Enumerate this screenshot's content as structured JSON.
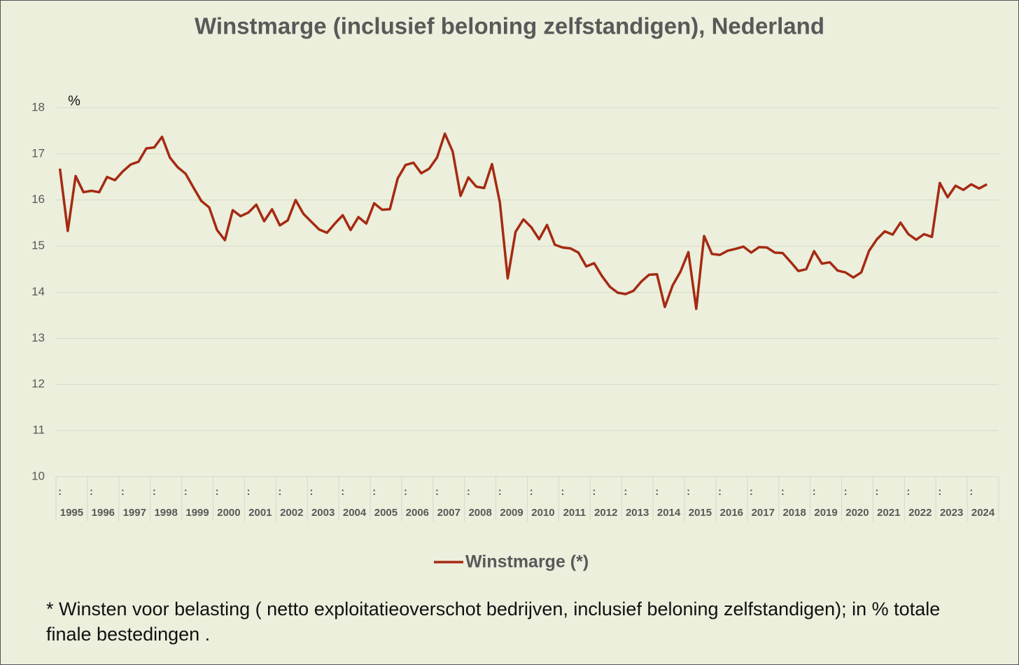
{
  "chart_data": {
    "type": "line",
    "title": "Winstmarge (inclusief beloning zelfstandigen), Nederland",
    "y_label": "%",
    "categories": [
      "1995",
      null,
      null,
      null,
      "1996",
      null,
      null,
      null,
      "1997",
      null,
      null,
      null,
      "1998",
      null,
      null,
      null,
      "1999",
      null,
      null,
      null,
      "2000",
      null,
      null,
      null,
      "2001",
      null,
      null,
      null,
      "2002",
      null,
      null,
      null,
      "2003",
      null,
      null,
      null,
      "2004",
      null,
      null,
      null,
      "2005",
      null,
      null,
      null,
      "2006",
      null,
      null,
      null,
      "2007",
      null,
      null,
      null,
      "2008",
      null,
      null,
      null,
      "2009",
      null,
      null,
      null,
      "2010",
      null,
      null,
      null,
      "2011",
      null,
      null,
      null,
      "2012",
      null,
      null,
      null,
      "2013",
      null,
      null,
      null,
      "2014",
      null,
      null,
      null,
      "2015",
      null,
      null,
      null,
      "2016",
      null,
      null,
      null,
      "2017",
      null,
      null,
      null,
      "2018",
      null,
      null,
      null,
      "2019",
      null,
      null,
      null,
      "2020",
      null,
      null,
      null,
      "2021",
      null,
      null,
      null,
      "2022",
      null,
      null,
      null,
      "2023",
      null,
      null,
      null,
      "2024",
      null,
      null
    ],
    "x_tick_marker": ":",
    "series": [
      {
        "name": "Winstmarge (*)",
        "color": "#a52a12",
        "values": [
          16.68,
          15.33,
          16.52,
          16.17,
          16.2,
          16.17,
          16.5,
          16.43,
          16.62,
          16.77,
          16.83,
          17.12,
          17.14,
          17.37,
          16.92,
          16.71,
          16.57,
          16.27,
          15.98,
          15.84,
          15.35,
          15.13,
          15.78,
          15.65,
          15.73,
          15.9,
          15.54,
          15.8,
          15.45,
          15.56,
          16.0,
          15.7,
          15.53,
          15.36,
          15.29,
          15.49,
          15.67,
          15.35,
          15.63,
          15.49,
          15.93,
          15.79,
          15.8,
          16.47,
          16.76,
          16.81,
          16.58,
          16.68,
          16.92,
          17.44,
          17.05,
          16.09,
          16.49,
          16.29,
          16.26,
          16.78,
          15.95,
          14.3,
          15.31,
          15.58,
          15.41,
          15.15,
          15.46,
          15.03,
          14.97,
          14.95,
          14.86,
          14.56,
          14.63,
          14.35,
          14.12,
          13.99,
          13.96,
          14.03,
          14.23,
          14.38,
          14.39,
          13.68,
          14.15,
          14.45,
          14.87,
          13.64,
          15.22,
          14.83,
          14.81,
          14.9,
          14.94,
          14.99,
          14.86,
          14.98,
          14.97,
          14.86,
          14.85,
          14.66,
          14.46,
          14.5,
          14.89,
          14.62,
          14.65,
          14.47,
          14.43,
          14.32,
          14.43,
          14.9,
          15.15,
          15.32,
          15.25,
          15.51,
          15.26,
          15.14,
          15.26,
          15.2,
          16.37,
          16.06,
          16.31,
          16.22,
          16.34,
          16.25,
          16.34
        ]
      }
    ],
    "ylim": [
      10,
      18
    ],
    "yticks": [
      10,
      11,
      12,
      13,
      14,
      15,
      16,
      17,
      18
    ],
    "grid": true,
    "legend": "bottom",
    "footnote": "* Winsten voor belasting ( netto exploitatieoverschot bedrijven, inclusief beloning zelfstandigen); in % totale finale bestedingen ."
  }
}
